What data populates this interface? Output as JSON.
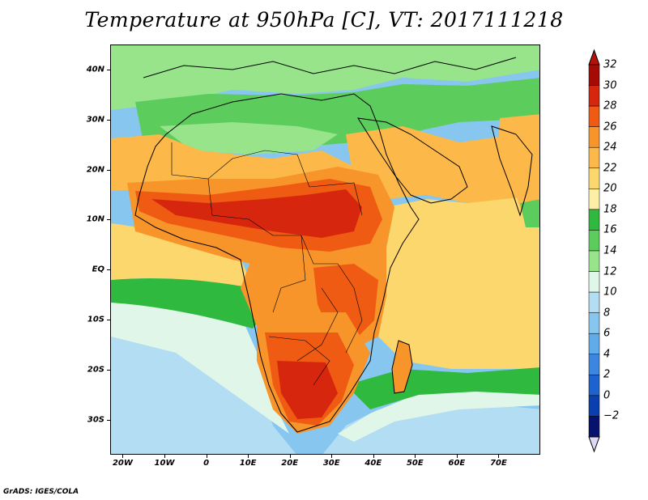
{
  "title": "Temperature at 950hPa [C], VT: 2017111218",
  "footer": "GrADS: IGES/COLA",
  "axes": {
    "lat_labels": [
      "40N",
      "30N",
      "20N",
      "10N",
      "EQ",
      "10S",
      "20S",
      "30S"
    ],
    "lat_values": [
      40,
      30,
      20,
      10,
      0,
      -10,
      -20,
      -30
    ],
    "lon_labels": [
      "20W",
      "10W",
      "0",
      "10E",
      "20E",
      "30E",
      "40E",
      "50E",
      "60E",
      "70E"
    ],
    "lon_values": [
      -20,
      -10,
      0,
      10,
      20,
      30,
      40,
      50,
      60,
      70
    ],
    "lon_range": [
      -23,
      80
    ],
    "lat_range": [
      -37,
      45
    ]
  },
  "colorbar": {
    "levels": [
      32,
      30,
      28,
      26,
      24,
      22,
      20,
      18,
      16,
      14,
      12,
      10,
      8,
      6,
      4,
      2,
      0,
      -2
    ],
    "level_labels": [
      "32",
      "30",
      "28",
      "26",
      "24",
      "22",
      "20",
      "18",
      "16",
      "14",
      "12",
      "10",
      "8",
      "6",
      "4",
      "2",
      "0",
      "−2"
    ],
    "colors": [
      "#a50a05",
      "#d7260e",
      "#ef5b12",
      "#f7942a",
      "#fcb848",
      "#fbd76e",
      "#fdf0a6",
      "#2fb93f",
      "#5ccd5c",
      "#97e48a",
      "#dff6e8",
      "#b2ddf2",
      "#86c6ef",
      "#60aceb",
      "#3b87e0",
      "#1c63cf",
      "#0a3fb0",
      "#06126e"
    ],
    "top_arrow_color": "#b3130a",
    "bottom_arrow_color": "#ddd8f5"
  },
  "map_colors": {
    "ocean_cool": "#86c6ef",
    "ocean_cooler": "#b2ddf2",
    "ocean_pale": "#dff6e8",
    "sea_warm": "#fbd76e",
    "sea_mild": "#fdf0a6",
    "green_dark": "#2fb93f",
    "green_mid": "#5ccd5c",
    "green_light": "#97e48a",
    "hot1": "#fcb848",
    "hot2": "#f7942a",
    "hot3": "#ef5b12",
    "hot4": "#d7260e",
    "hot5": "#a50a05"
  }
}
